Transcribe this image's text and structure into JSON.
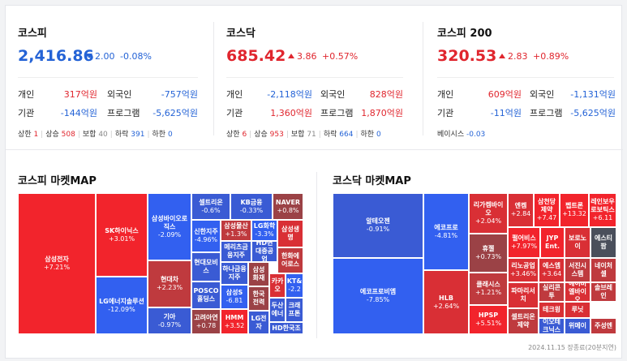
{
  "kospi": {
    "title": "코스피",
    "value": "2,416.86",
    "change": "2.00",
    "rate": "-0.08%",
    "rows": [
      {
        "l1": "개인",
        "v1": "317억원",
        "l2": "외국인",
        "v2": "-757억원"
      },
      {
        "l1": "기관",
        "v1": "-144억원",
        "l2": "프로그램",
        "v2": "-5,625억원"
      }
    ],
    "foot": {
      "up_limit_label": "상한",
      "up_limit": "1",
      "up_label": "상승",
      "up": "508",
      "flat_label": "보합",
      "flat": "40",
      "down_label": "하락",
      "down": "391",
      "down_limit_label": "하한",
      "down_limit": "0"
    }
  },
  "kosdaq": {
    "title": "코스닥",
    "value": "685.42",
    "change": "3.86",
    "rate": "+0.57%",
    "rows": [
      {
        "l1": "개인",
        "v1": "-2,118억원",
        "l2": "외국인",
        "v2": "828억원"
      },
      {
        "l1": "기관",
        "v1": "1,360억원",
        "l2": "프로그램",
        "v2": "1,870억원"
      }
    ],
    "foot": {
      "up_limit_label": "상한",
      "up_limit": "6",
      "up_label": "상승",
      "up": "953",
      "flat_label": "보합",
      "flat": "71",
      "down_label": "하락",
      "down": "664",
      "down_limit_label": "하한",
      "down_limit": "0"
    }
  },
  "kospi200": {
    "title": "코스피 200",
    "value": "320.53",
    "change": "2.83",
    "rate": "+0.89%",
    "rows": [
      {
        "l1": "개인",
        "v1": "609억원",
        "l2": "외국인",
        "v2": "-1,131억원"
      },
      {
        "l1": "기관",
        "v1": "-11억원",
        "l2": "프로그램",
        "v2": "-5,625억원"
      }
    ],
    "basis_label": "베이시스",
    "basis": "-0.03"
  },
  "kospi_map_title": "코스피 마켓MAP",
  "kosdaq_map_title": "코스닥 마켓MAP",
  "kospi_map": [
    {
      "name": "삼성전자",
      "pct": "+7.21%",
      "c": "R1"
    },
    {
      "name": "SK하이닉스",
      "pct": "+3.01%",
      "c": "R1"
    },
    {
      "name": "LG에너지솔루션",
      "pct": "-12.09%",
      "c": "B1"
    },
    {
      "name": "삼성바이오로직스",
      "pct": "-2.09%",
      "c": "B1"
    },
    {
      "name": "현대차",
      "pct": "+2.23%",
      "c": "R3"
    },
    {
      "name": "기아",
      "pct": "-0.97%",
      "c": "B2"
    },
    {
      "name": "셀트리온",
      "pct": "-0.6%",
      "c": "B2"
    },
    {
      "name": "KB금융",
      "pct": "-0.33%",
      "c": "B2"
    },
    {
      "name": "NAVER",
      "pct": "+0.8%",
      "c": "R4"
    },
    {
      "name": "신한지주",
      "pct": "-4.96%",
      "c": "B1"
    },
    {
      "name": "삼성물산",
      "pct": "+1.3%",
      "c": "R3"
    },
    {
      "name": "LG화학",
      "pct": "-3.3%",
      "c": "B1"
    },
    {
      "name": "삼성생명",
      "pct": "",
      "c": "R2"
    },
    {
      "name": "메리츠금융지주",
      "pct": "",
      "c": "B2"
    },
    {
      "name": "HD현대중공업",
      "pct": "",
      "c": "B2"
    },
    {
      "name": "한화에어로스",
      "pct": "",
      "c": "R3"
    },
    {
      "name": "현대모비스",
      "pct": "",
      "c": "B2"
    },
    {
      "name": "하나금융지주",
      "pct": "",
      "c": "B2"
    },
    {
      "name": "삼성화재",
      "pct": "",
      "c": "R4"
    },
    {
      "name": "카카오",
      "pct": "",
      "c": "R2"
    },
    {
      "name": "KT&",
      "pct": "-2.2",
      "c": "B1"
    },
    {
      "name": "POSCO홀딩스",
      "pct": "",
      "c": "B2"
    },
    {
      "name": "삼성S",
      "pct": "-6.81",
      "c": "B1"
    },
    {
      "name": "한국전력",
      "pct": "",
      "c": "R4"
    },
    {
      "name": "두산에너",
      "pct": "",
      "c": "B2"
    },
    {
      "name": "크래프톤",
      "pct": "",
      "c": "B2"
    },
    {
      "name": "고려아연",
      "pct": "+0.78",
      "c": "R4"
    },
    {
      "name": "HMM",
      "pct": "+3.52",
      "c": "R1"
    },
    {
      "name": "LG전자",
      "pct": "",
      "c": "B2"
    },
    {
      "name": "HD한국조",
      "pct": "",
      "c": "B2"
    }
  ],
  "kosdaq_map": [
    {
      "name": "알테오젠",
      "pct": "-0.91%",
      "c": "B2"
    },
    {
      "name": "에코프로비엠",
      "pct": "-7.85%",
      "c": "B1"
    },
    {
      "name": "에코프로",
      "pct": "-4.81%",
      "c": "B1"
    },
    {
      "name": "HLB",
      "pct": "+2.64%",
      "c": "R2"
    },
    {
      "name": "리가켐바이오",
      "pct": "+2.04%",
      "c": "R2"
    },
    {
      "name": "휴젤",
      "pct": "+0.73%",
      "c": "R4"
    },
    {
      "name": "클래시스",
      "pct": "+1.21%",
      "c": "R3"
    },
    {
      "name": "HPSP",
      "pct": "+5.51%",
      "c": "R1"
    },
    {
      "name": "엔켐",
      "pct": "+2.84",
      "c": "R2"
    },
    {
      "name": "삼천당제약",
      "pct": "+7.47",
      "c": "R1"
    },
    {
      "name": "펩트론",
      "pct": "+13.32",
      "c": "R1"
    },
    {
      "name": "레인보우로보틱스",
      "pct": "+6.11",
      "c": "R1"
    },
    {
      "name": "펄어비스",
      "pct": "+7.97%",
      "c": "R1"
    },
    {
      "name": "JYP Ent.",
      "pct": "",
      "c": "R1"
    },
    {
      "name": "보로노이",
      "pct": "",
      "c": "R2"
    },
    {
      "name": "에스티팜",
      "pct": "",
      "c": "G"
    },
    {
      "name": "리노공업",
      "pct": "+3.46%",
      "c": "R2"
    },
    {
      "name": "에스엠",
      "pct": "+3.64",
      "c": "R2"
    },
    {
      "name": "서진시스템",
      "pct": "",
      "c": "R3"
    },
    {
      "name": "네이처셀",
      "pct": "",
      "c": "R3"
    },
    {
      "name": "파마리서치",
      "pct": "",
      "c": "R2"
    },
    {
      "name": "실리콘투",
      "pct": "",
      "c": "R3"
    },
    {
      "name": "에이비엘바이오",
      "pct": "",
      "c": "R2"
    },
    {
      "name": "솔브레인",
      "pct": "",
      "c": "R3"
    },
    {
      "name": "테크윙",
      "pct": "",
      "c": "R2"
    },
    {
      "name": "루닛",
      "pct": "",
      "c": "R2"
    },
    {
      "name": "셀트리온제약",
      "pct": "",
      "c": "R3"
    },
    {
      "name": "이오테크닉스",
      "pct": "",
      "c": "B2"
    },
    {
      "name": "위메이",
      "pct": "",
      "c": "B2"
    },
    {
      "name": "주성엔",
      "pct": "",
      "c": "R3"
    }
  ],
  "timestamp": "2024.11.15 장종료(20분지연)"
}
